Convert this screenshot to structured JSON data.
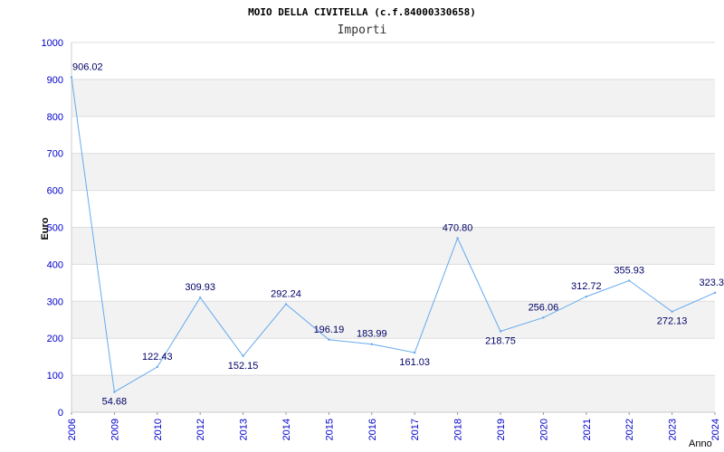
{
  "chart_data": {
    "type": "line",
    "title": "MOIO DELLA CIVITELLA (c.f.84000330658)",
    "subtitle": "Importi",
    "ylabel": "Euro",
    "xlabel": "Anno",
    "ylim": [
      0,
      1000
    ],
    "yticks": [
      0,
      100,
      200,
      300,
      400,
      500,
      600,
      700,
      800,
      900,
      1000
    ],
    "categories": [
      "2006",
      "2009",
      "2010",
      "2012",
      "2013",
      "2014",
      "2015",
      "2016",
      "2017",
      "2018",
      "2019",
      "2020",
      "2021",
      "2022",
      "2023",
      "2024"
    ],
    "values": [
      906.02,
      54.68,
      122.43,
      309.93,
      152.15,
      292.24,
      196.19,
      183.99,
      161.03,
      470.8,
      218.75,
      256.06,
      312.72,
      355.93,
      272.13,
      323.3
    ],
    "labels": [
      "906.02",
      "54.68",
      "122.43",
      "309.93",
      "152.15",
      "292.24",
      "196.19",
      "183.99",
      "161.03",
      "470.80",
      "218.75",
      "256.06",
      "312.72",
      "355.93",
      "272.13",
      "323.3"
    ],
    "grid": true,
    "colors": {
      "line": "#66aaee",
      "band": "#f2f2f2",
      "gridline": "#dddddd",
      "tick_text": "#0000cc",
      "label_text": "#000066"
    }
  }
}
